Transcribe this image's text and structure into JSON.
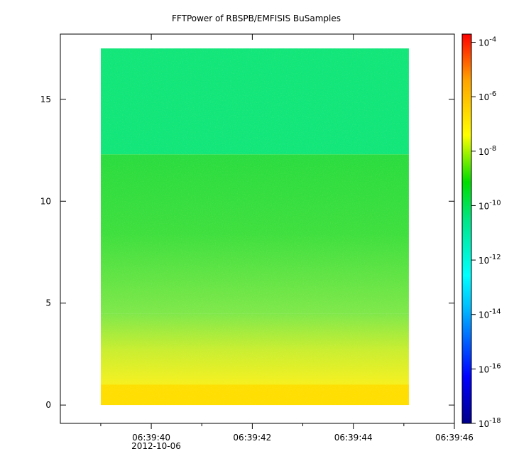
{
  "chart_data": {
    "type": "heatmap",
    "title": "FFTPower of RBSPB/EMFISIS  BuSamples",
    "xlabel": "",
    "ylabel": "",
    "date_label": "2012-10-06",
    "x_ticks": [
      "06:39:40",
      "06:39:42",
      "06:39:44",
      "06:39:46"
    ],
    "x_range": [
      "06:39:38.2",
      "06:39:46.0"
    ],
    "data_x_range": [
      "06:39:39.0",
      "06:39:45.1"
    ],
    "y_ticks": [
      0,
      5,
      10,
      15
    ],
    "y_range": [
      -0.9,
      18.2
    ],
    "data_y_range": [
      0,
      17.5
    ],
    "colorbar": {
      "scale": "log",
      "range": [
        "1e-18",
        "2e-4"
      ],
      "ticks": [
        {
          "base": "10",
          "exp": "-4"
        },
        {
          "base": "10",
          "exp": "-6"
        },
        {
          "base": "10",
          "exp": "-8"
        },
        {
          "base": "10",
          "exp": "-10"
        },
        {
          "base": "10",
          "exp": "-12"
        },
        {
          "base": "10",
          "exp": "-14"
        },
        {
          "base": "10",
          "exp": "-16"
        },
        {
          "base": "10",
          "exp": "-18"
        }
      ],
      "colormap": [
        "#00008b",
        "#0000ff",
        "#00bfff",
        "#00ffff",
        "#00e68a",
        "#00dd00",
        "#ffff00",
        "#ffa500",
        "#ff0000"
      ]
    },
    "levels": {
      "high_band_above_12": "1e-12",
      "mid_band_5_to_12": "1e-10",
      "low_band_0_to_5": "1e-9",
      "chorus_ridges": "1e-8"
    }
  }
}
